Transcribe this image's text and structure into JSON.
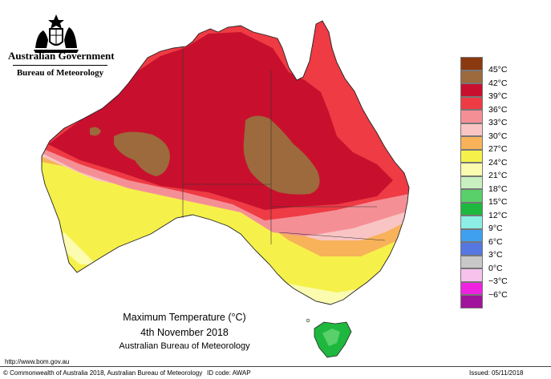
{
  "header": {
    "government": "Australian Government",
    "bureau": "Bureau of Meteorology",
    "crest_icon": "coat-of-arms-icon"
  },
  "legend": {
    "items": [
      {
        "label": "45°C",
        "color": "#8b3a10"
      },
      {
        "label": "42°C",
        "color": "#9c6a3c"
      },
      {
        "label": "39°C",
        "color": "#c8102e"
      },
      {
        "label": "36°C",
        "color": "#ee3b44"
      },
      {
        "label": "33°C",
        "color": "#f58f96"
      },
      {
        "label": "30°C",
        "color": "#f9c4c4"
      },
      {
        "label": "27°C",
        "color": "#f7b25a"
      },
      {
        "label": "24°C",
        "color": "#f6f14a"
      },
      {
        "label": "21°C",
        "color": "#fbfcb0"
      },
      {
        "label": "18°C",
        "color": "#c9f0c0"
      },
      {
        "label": "15°C",
        "color": "#59d06a"
      },
      {
        "label": "12°C",
        "color": "#1eb83e"
      },
      {
        "label": "9°C",
        "color": "#8deee5"
      },
      {
        "label": "6°C",
        "color": "#3fa0f0"
      },
      {
        "label": "3°C",
        "color": "#5577e0"
      },
      {
        "label": "0°C",
        "color": "#c8c8c8"
      },
      {
        "label": "−3°C",
        "color": "#f7c2ec"
      },
      {
        "label": "−6°C",
        "color": "#ee22e0"
      },
      {
        "label": "",
        "color": "#a0139a"
      }
    ]
  },
  "caption": {
    "title": "Maximum Temperature (°C)",
    "date": "4th November 2018",
    "source": "Australian Bureau of Meteorology"
  },
  "footer": {
    "url": "http://www.bom.gov.au",
    "copyright": "© Commonwealth of Australia 2018, Australian Bureau of Meteorology",
    "id_code": "ID code: AWAP",
    "issued": "Issued: 05/11/2018"
  }
}
